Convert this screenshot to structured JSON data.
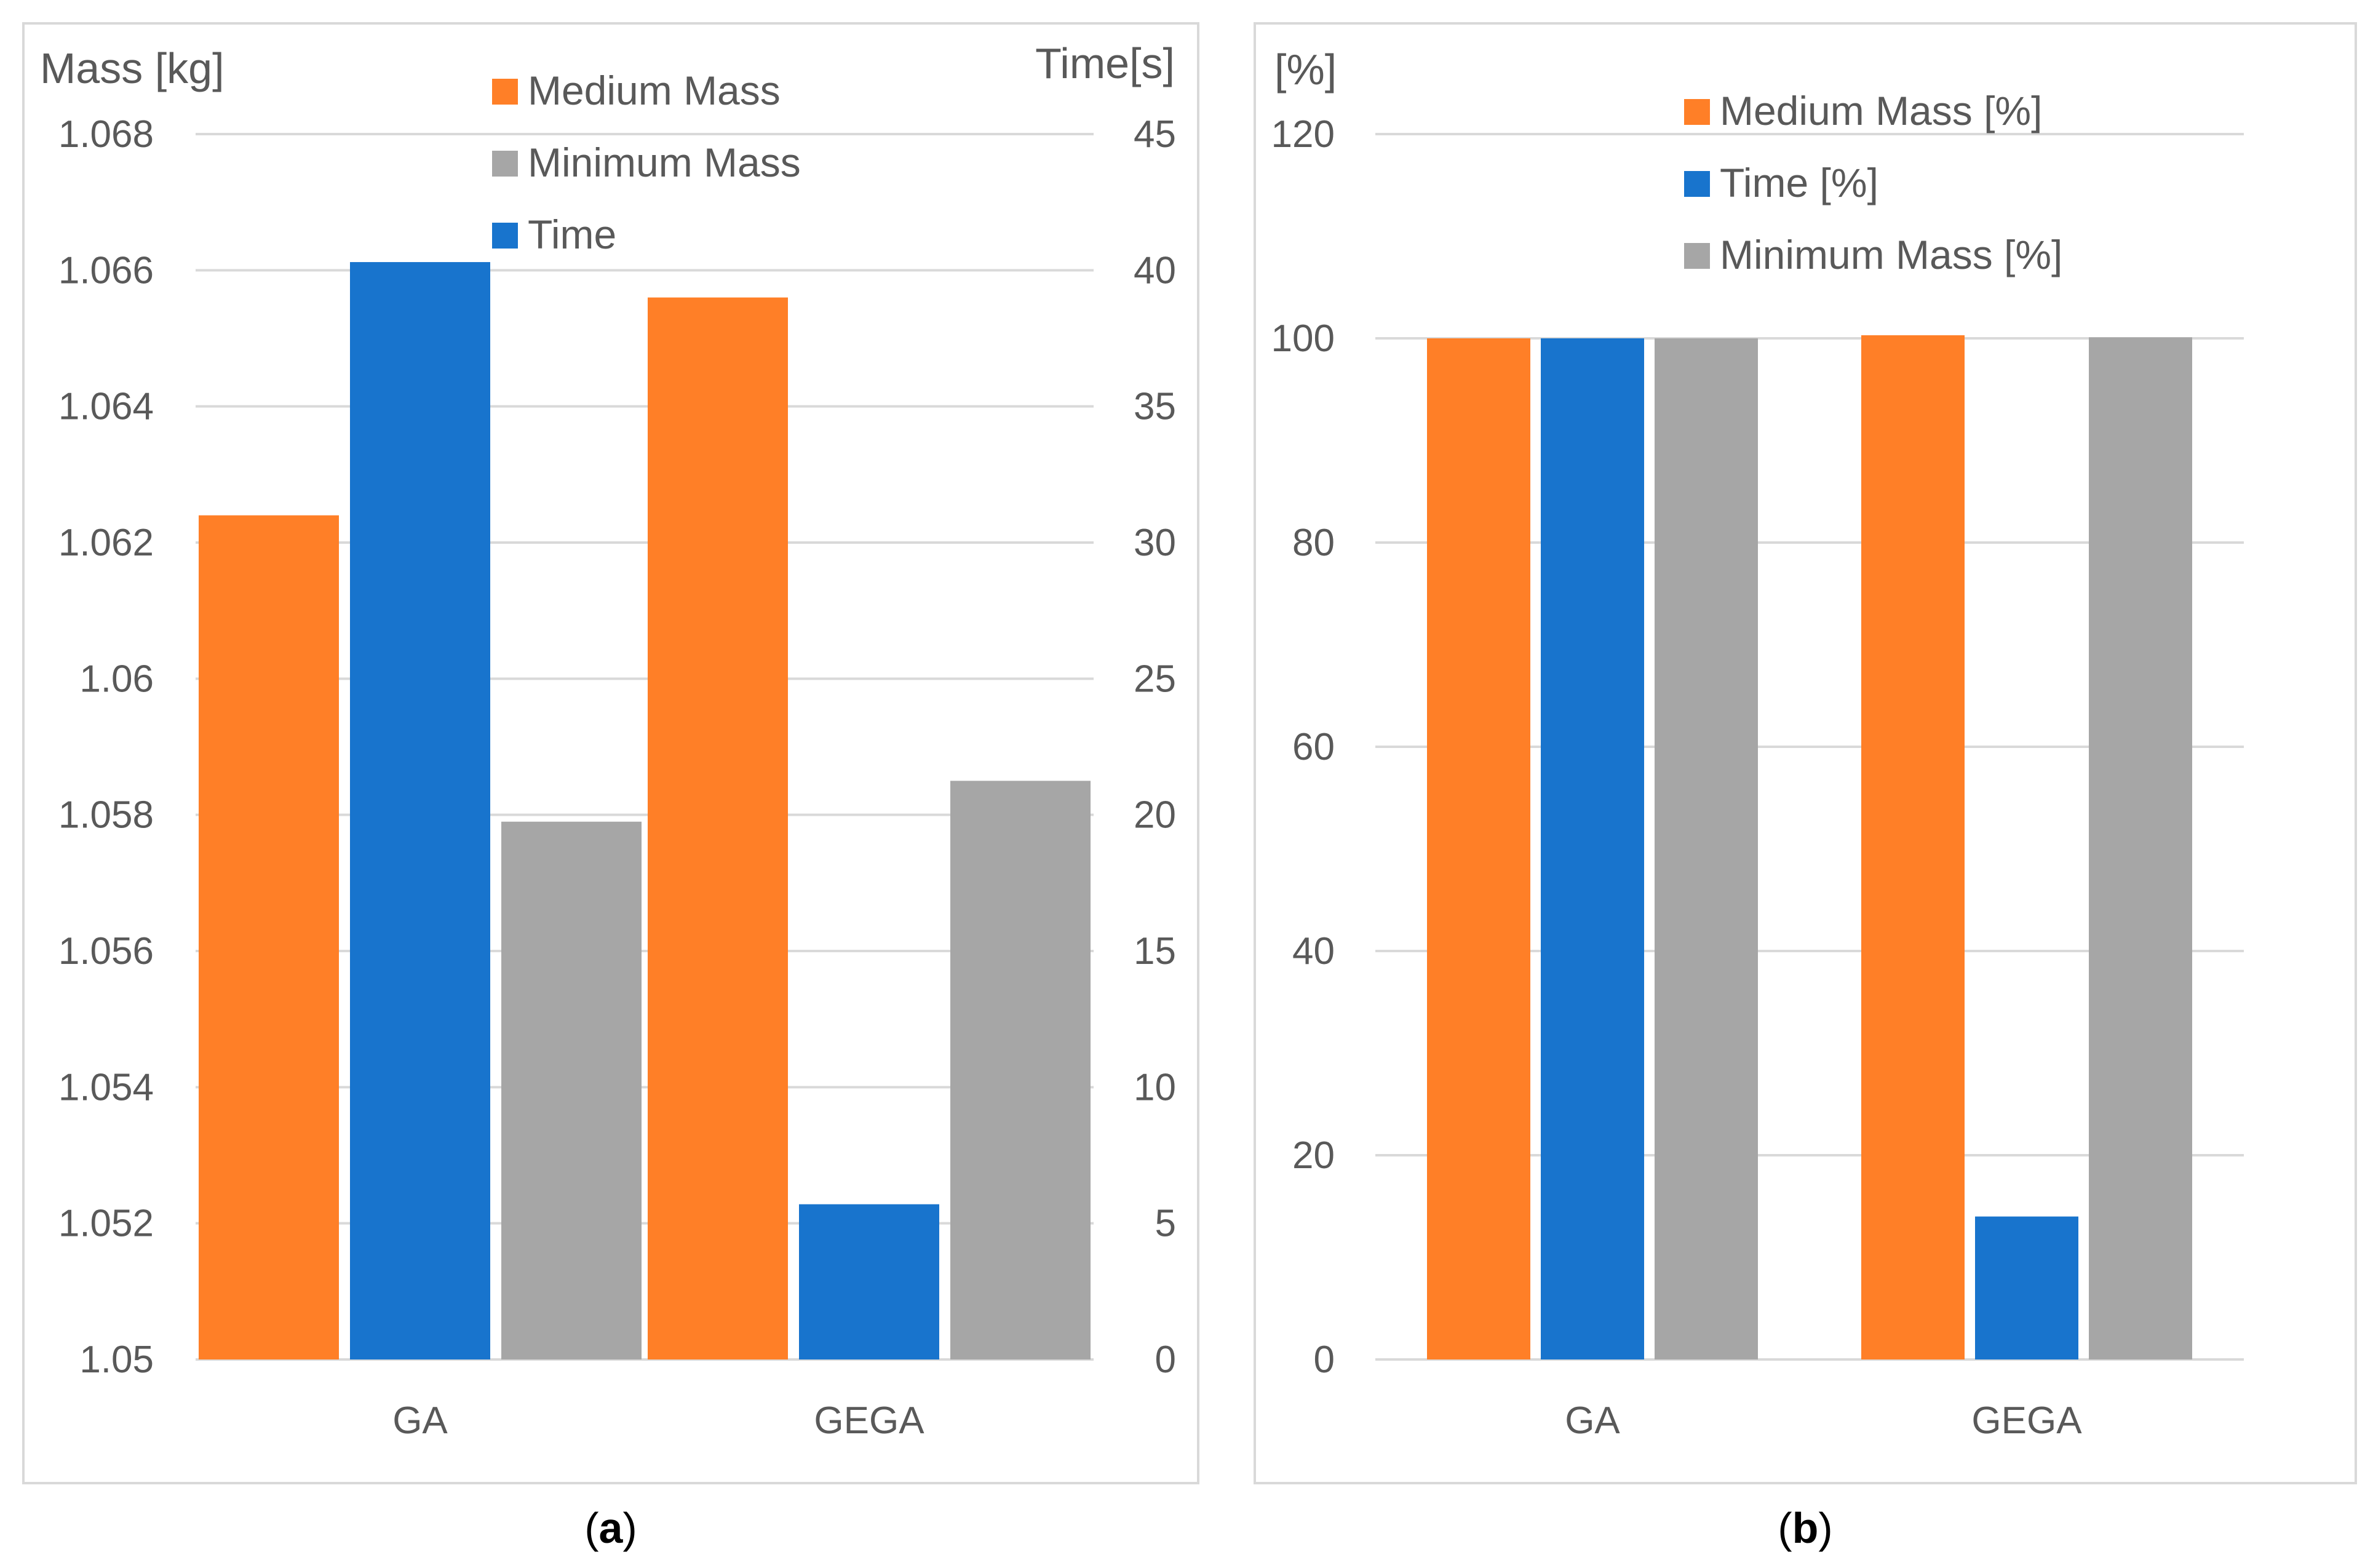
{
  "chart_data": [
    {
      "type": "bar",
      "caption": {
        "open": "(",
        "letter": "a",
        "close": ")"
      },
      "categories": [
        "GA",
        "GEGA"
      ],
      "ylabel": "Mass [kg]",
      "y2label": "Time[s]",
      "ylim": [
        1.05,
        1.068
      ],
      "y2lim": [
        0,
        45
      ],
      "yticks": [
        "1.05",
        "1.052",
        "1.054",
        "1.056",
        "1.058",
        "1.06",
        "1.062",
        "1.064",
        "1.066",
        "1.068"
      ],
      "y2ticks": [
        "0",
        "5",
        "10",
        "15",
        "20",
        "25",
        "30",
        "35",
        "40",
        "45"
      ],
      "grid": true,
      "legend_position": "top-center",
      "series": [
        {
          "name": "Medium Mass",
          "axis": "left",
          "color": "#FF7F27",
          "values": [
            1.0624,
            1.0656
          ]
        },
        {
          "name": "Time",
          "axis": "right",
          "color": "#1874CD",
          "values": [
            40.3,
            5.7
          ]
        },
        {
          "name": "Minimum Mass",
          "axis": "left",
          "color": "#A6A6A6",
          "values": [
            1.0579,
            1.0585
          ]
        }
      ],
      "legend_order": [
        "Medium Mass",
        "Minimum Mass",
        "Time"
      ]
    },
    {
      "type": "bar",
      "caption": {
        "open": "(",
        "letter": "b",
        "close": ")"
      },
      "categories": [
        "GA",
        "GEGA"
      ],
      "ylabel": "[%]",
      "ylim": [
        0,
        120
      ],
      "yticks": [
        "0",
        "20",
        "40",
        "60",
        "80",
        "100",
        "120"
      ],
      "grid": true,
      "legend_position": "top-center",
      "series": [
        {
          "name": "Medium Mass [%]",
          "color": "#FF7F27",
          "values": [
            100,
            100.3
          ]
        },
        {
          "name": "Time [%]",
          "color": "#1874CD",
          "values": [
            100,
            14
          ]
        },
        {
          "name": "Minimum Mass [%]",
          "color": "#A6A6A6",
          "values": [
            100,
            100.1
          ]
        }
      ],
      "legend_order": [
        "Medium Mass [%]",
        "Time [%]",
        "Minimum Mass [%]"
      ]
    }
  ]
}
